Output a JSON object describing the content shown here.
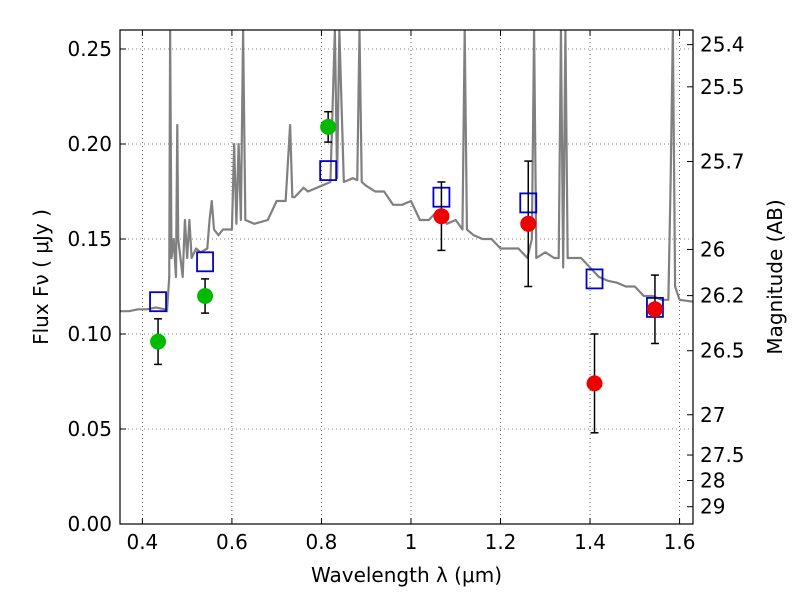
{
  "chart_data": {
    "type": "scatter",
    "xlabel": "Wavelength  λ (μm)",
    "ylabel": "Flux  Fν  ( μJy )",
    "ylabel_right": "Magnitude (AB)",
    "xlim": [
      0.35,
      1.63
    ],
    "ylim": [
      0.0,
      0.26
    ],
    "grid": true,
    "x_ticks": [
      0.4,
      0.6,
      0.8,
      1.0,
      1.2,
      1.4,
      1.6
    ],
    "x_tick_labels": [
      "0.4",
      "0.6",
      "0.8",
      "1",
      "1.2",
      "1.4",
      "1.6"
    ],
    "y_ticks": [
      0.0,
      0.05,
      0.1,
      0.15,
      0.2,
      0.25
    ],
    "y_tick_labels": [
      "0.00",
      "0.05",
      "0.10",
      "0.15",
      "0.20",
      "0.25"
    ],
    "right_axis": {
      "labels": [
        "25.4",
        "25.5",
        "25.7",
        "26",
        "26.2",
        "26.5",
        "27",
        "27.5",
        "28",
        "29"
      ],
      "flux_positions": [
        0.2523,
        0.2301,
        0.1908,
        0.1445,
        0.1202,
        0.0912,
        0.0575,
        0.0363,
        0.0229,
        0.0091
      ]
    },
    "series": [
      {
        "style": "line",
        "color": "#808080",
        "x": [
          0.35,
          0.37,
          0.39,
          0.41,
          0.43,
          0.45,
          0.455,
          0.46,
          0.462,
          0.465,
          0.47,
          0.475,
          0.478,
          0.48,
          0.485,
          0.49,
          0.495,
          0.5,
          0.505,
          0.51,
          0.52,
          0.53,
          0.545,
          0.55,
          0.555,
          0.56,
          0.57,
          0.58,
          0.6,
          0.605,
          0.61,
          0.615,
          0.62,
          0.625,
          0.63,
          0.65,
          0.68,
          0.7,
          0.72,
          0.73,
          0.735,
          0.74,
          0.76,
          0.77,
          0.78,
          0.8,
          0.82,
          0.83,
          0.835,
          0.84,
          0.85,
          0.86,
          0.87,
          0.88,
          0.885,
          0.89,
          0.9,
          0.92,
          0.94,
          0.96,
          0.98,
          1.0,
          1.02,
          1.04,
          1.06,
          1.08,
          1.1,
          1.115,
          1.12,
          1.125,
          1.14,
          1.16,
          1.18,
          1.2,
          1.22,
          1.24,
          1.26,
          1.27,
          1.275,
          1.28,
          1.3,
          1.32,
          1.33,
          1.335,
          1.34,
          1.345,
          1.35,
          1.36,
          1.38,
          1.4,
          1.42,
          1.44,
          1.46,
          1.48,
          1.5,
          1.52,
          1.54,
          1.56,
          1.575,
          1.58,
          1.585,
          1.59,
          1.6,
          1.63
        ],
        "y": [
          0.112,
          0.112,
          0.113,
          0.113,
          0.114,
          0.113,
          0.112,
          0.13,
          0.26,
          0.14,
          0.15,
          0.13,
          0.21,
          0.15,
          0.14,
          0.13,
          0.16,
          0.14,
          0.16,
          0.14,
          0.145,
          0.143,
          0.145,
          0.16,
          0.17,
          0.155,
          0.152,
          0.155,
          0.155,
          0.2,
          0.158,
          0.2,
          0.16,
          0.26,
          0.16,
          0.158,
          0.16,
          0.17,
          0.17,
          0.21,
          0.172,
          0.172,
          0.177,
          0.175,
          0.176,
          0.178,
          0.18,
          0.26,
          0.182,
          0.26,
          0.18,
          0.181,
          0.182,
          0.181,
          0.26,
          0.18,
          0.178,
          0.175,
          0.175,
          0.168,
          0.168,
          0.17,
          0.16,
          0.16,
          0.165,
          0.158,
          0.16,
          0.155,
          0.26,
          0.155,
          0.152,
          0.15,
          0.15,
          0.145,
          0.145,
          0.145,
          0.14,
          0.15,
          0.26,
          0.14,
          0.143,
          0.14,
          0.14,
          0.26,
          0.135,
          0.26,
          0.14,
          0.14,
          0.14,
          0.135,
          0.13,
          0.128,
          0.127,
          0.125,
          0.125,
          0.12,
          0.12,
          0.118,
          0.118,
          0.18,
          0.26,
          0.125,
          0.118,
          0.117
        ]
      },
      {
        "style": "open-square",
        "color": "#0000cc",
        "x": [
          0.435,
          0.54,
          0.815,
          1.068,
          1.262,
          1.41,
          1.545
        ],
        "y": [
          0.117,
          0.138,
          0.186,
          0.172,
          0.169,
          0.129,
          0.114
        ]
      },
      {
        "style": "filled-circle",
        "color": "#00bb00",
        "x": [
          0.435,
          0.54,
          0.815
        ],
        "y": [
          0.096,
          0.12,
          0.209
        ],
        "yerr": [
          0.012,
          0.009,
          0.008
        ]
      },
      {
        "style": "filled-circle",
        "color": "#ee0000",
        "x": [
          1.068,
          1.262,
          1.41,
          1.545
        ],
        "y": [
          0.162,
          0.158,
          0.074,
          0.113
        ],
        "yerr": [
          0.018,
          0.033,
          0.026,
          0.018
        ]
      }
    ]
  }
}
